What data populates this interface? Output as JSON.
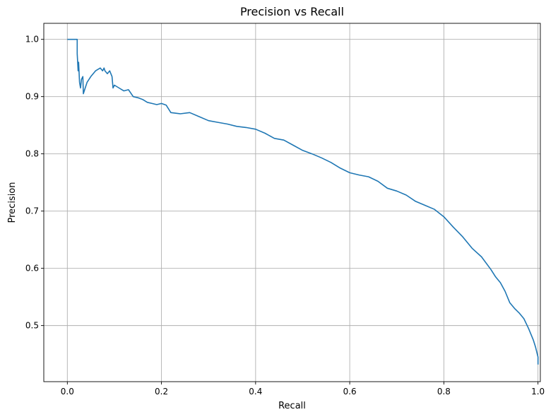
{
  "chart_data": {
    "type": "line",
    "title": "Precision vs Recall",
    "xlabel": "Recall",
    "ylabel": "Precision",
    "xlim": [
      -0.05,
      1.005
    ],
    "ylim": [
      0.402,
      1.028
    ],
    "xticks": [
      0.0,
      0.2,
      0.4,
      0.6,
      0.8,
      1.0
    ],
    "xtick_labels": [
      "0.0",
      "0.2",
      "0.4",
      "0.6",
      "0.8",
      "1.0"
    ],
    "yticks": [
      0.5,
      0.6,
      0.7,
      0.8,
      0.9,
      1.0
    ],
    "ytick_labels": [
      "0.5",
      "0.6",
      "0.7",
      "0.8",
      "0.9",
      "1.0"
    ],
    "grid": true,
    "color": "#1f77b4",
    "series": [
      {
        "x": [
          0.0,
          0.021,
          0.021,
          0.023,
          0.024,
          0.026,
          0.028,
          0.03,
          0.033,
          0.034,
          0.036,
          0.042,
          0.05,
          0.06,
          0.07,
          0.075,
          0.078,
          0.08,
          0.085,
          0.09,
          0.095,
          0.097,
          0.1,
          0.11,
          0.12,
          0.13,
          0.14,
          0.15,
          0.16,
          0.17,
          0.18,
          0.19,
          0.2,
          0.21,
          0.22,
          0.24,
          0.26,
          0.28,
          0.3,
          0.32,
          0.34,
          0.36,
          0.38,
          0.4,
          0.42,
          0.44,
          0.46,
          0.48,
          0.5,
          0.52,
          0.54,
          0.56,
          0.58,
          0.6,
          0.62,
          0.64,
          0.66,
          0.68,
          0.7,
          0.72,
          0.74,
          0.76,
          0.78,
          0.8,
          0.82,
          0.84,
          0.86,
          0.88,
          0.9,
          0.91,
          0.92,
          0.93,
          0.94,
          0.95,
          0.96,
          0.97,
          0.98,
          0.99,
          0.995,
          1.0,
          1.0
        ],
        "y": [
          1.0,
          1.0,
          0.975,
          0.945,
          0.96,
          0.925,
          0.915,
          0.93,
          0.935,
          0.905,
          0.91,
          0.925,
          0.935,
          0.945,
          0.95,
          0.945,
          0.95,
          0.945,
          0.94,
          0.945,
          0.935,
          0.915,
          0.92,
          0.915,
          0.91,
          0.912,
          0.9,
          0.898,
          0.895,
          0.89,
          0.888,
          0.886,
          0.888,
          0.885,
          0.872,
          0.87,
          0.872,
          0.865,
          0.858,
          0.855,
          0.852,
          0.848,
          0.846,
          0.843,
          0.836,
          0.827,
          0.824,
          0.815,
          0.806,
          0.8,
          0.793,
          0.785,
          0.775,
          0.767,
          0.763,
          0.76,
          0.752,
          0.74,
          0.735,
          0.728,
          0.717,
          0.71,
          0.703,
          0.69,
          0.672,
          0.655,
          0.635,
          0.62,
          0.598,
          0.585,
          0.575,
          0.56,
          0.54,
          0.53,
          0.522,
          0.512,
          0.495,
          0.475,
          0.462,
          0.445,
          0.432
        ]
      }
    ]
  }
}
